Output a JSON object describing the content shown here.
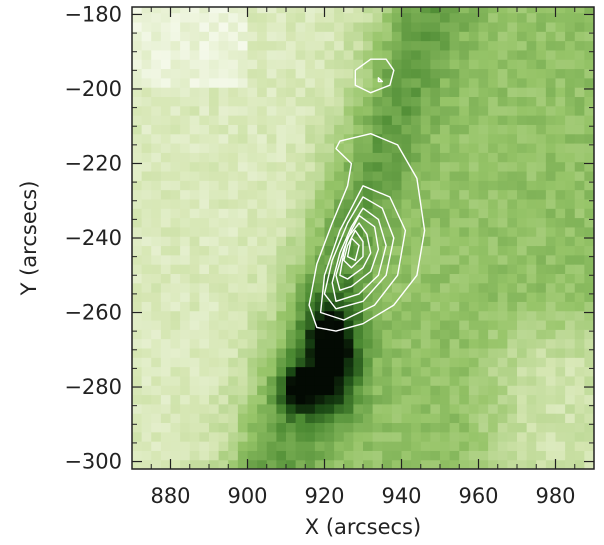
{
  "chart_data": {
    "type": "heatmap",
    "title": "",
    "xlabel": "X (arcsecs)",
    "ylabel": "Y (arcsecs)",
    "xlim": [
      870,
      990
    ],
    "ylim": [
      -302,
      -178
    ],
    "xticks": [
      880,
      900,
      920,
      940,
      960,
      980
    ],
    "yticks": [
      -180,
      -200,
      -220,
      -240,
      -260,
      -280,
      -300
    ],
    "xtick_labels": [
      "880",
      "900",
      "920",
      "940",
      "960",
      "980"
    ],
    "ytick_labels": [
      "−180",
      "−200",
      "−220",
      "−240",
      "−260",
      "−280",
      "−300"
    ],
    "colormap": "green (white → dark green → black)",
    "contour_color": "#ffffff",
    "intensity_peak_center": [
      922,
      -272
    ],
    "contour_peak": [
      926,
      -242
    ],
    "contours": [
      {
        "level": 1,
        "points": [
          [
            936,
            -192
          ],
          [
            938,
            -195
          ],
          [
            937,
            -199
          ],
          [
            932,
            -201
          ],
          [
            928,
            -199
          ],
          [
            928,
            -195
          ],
          [
            932,
            -192
          ]
        ]
      },
      {
        "level": 2,
        "points": [
          [
            934,
            -197
          ],
          [
            935,
            -198
          ],
          [
            934,
            -198
          ]
        ]
      },
      {
        "level": 1,
        "points": [
          [
            924,
            -214
          ],
          [
            932,
            -212
          ],
          [
            939,
            -215
          ],
          [
            944,
            -224
          ],
          [
            946,
            -238
          ],
          [
            944,
            -250
          ],
          [
            938,
            -258
          ],
          [
            930,
            -263
          ],
          [
            923,
            -265
          ],
          [
            918,
            -264
          ],
          [
            916,
            -258
          ],
          [
            918,
            -247
          ],
          [
            922,
            -236
          ],
          [
            926,
            -226
          ],
          [
            927,
            -220
          ],
          [
            923,
            -216
          ]
        ]
      },
      {
        "level": 2,
        "points": [
          [
            930,
            -226
          ],
          [
            937,
            -229
          ],
          [
            941,
            -238
          ],
          [
            939,
            -250
          ],
          [
            933,
            -258
          ],
          [
            925,
            -262
          ],
          [
            919,
            -260
          ],
          [
            920,
            -250
          ],
          [
            924,
            -238
          ]
        ]
      },
      {
        "level": 3,
        "points": [
          [
            930,
            -229
          ],
          [
            935,
            -232
          ],
          [
            938,
            -240
          ],
          [
            936,
            -250
          ],
          [
            930,
            -257
          ],
          [
            923,
            -259
          ],
          [
            920,
            -255
          ],
          [
            922,
            -246
          ],
          [
            926,
            -236
          ]
        ]
      },
      {
        "level": 4,
        "points": [
          [
            930,
            -232
          ],
          [
            934,
            -235
          ],
          [
            936,
            -242
          ],
          [
            934,
            -250
          ],
          [
            929,
            -255
          ],
          [
            923,
            -257
          ],
          [
            922,
            -252
          ],
          [
            924,
            -244
          ],
          [
            927,
            -237
          ]
        ]
      },
      {
        "level": 5,
        "points": [
          [
            929,
            -234
          ],
          [
            933,
            -237
          ],
          [
            934,
            -243
          ],
          [
            932,
            -249
          ],
          [
            927,
            -253
          ],
          [
            924,
            -254
          ],
          [
            923,
            -250
          ],
          [
            925,
            -243
          ],
          [
            927,
            -238
          ]
        ]
      },
      {
        "level": 6,
        "points": [
          [
            929,
            -236
          ],
          [
            931,
            -239
          ],
          [
            932,
            -244
          ],
          [
            930,
            -248
          ],
          [
            926,
            -251
          ],
          [
            924,
            -250
          ],
          [
            925,
            -244
          ],
          [
            926,
            -240
          ]
        ]
      },
      {
        "level": 7,
        "points": [
          [
            928,
            -238
          ],
          [
            930,
            -241
          ],
          [
            930,
            -245
          ],
          [
            927,
            -248
          ],
          [
            925,
            -246
          ],
          [
            926,
            -242
          ]
        ]
      },
      {
        "level": 8,
        "points": [
          [
            927,
            -240
          ],
          [
            929,
            -242
          ],
          [
            928,
            -246
          ],
          [
            926,
            -245
          ]
        ]
      }
    ]
  }
}
